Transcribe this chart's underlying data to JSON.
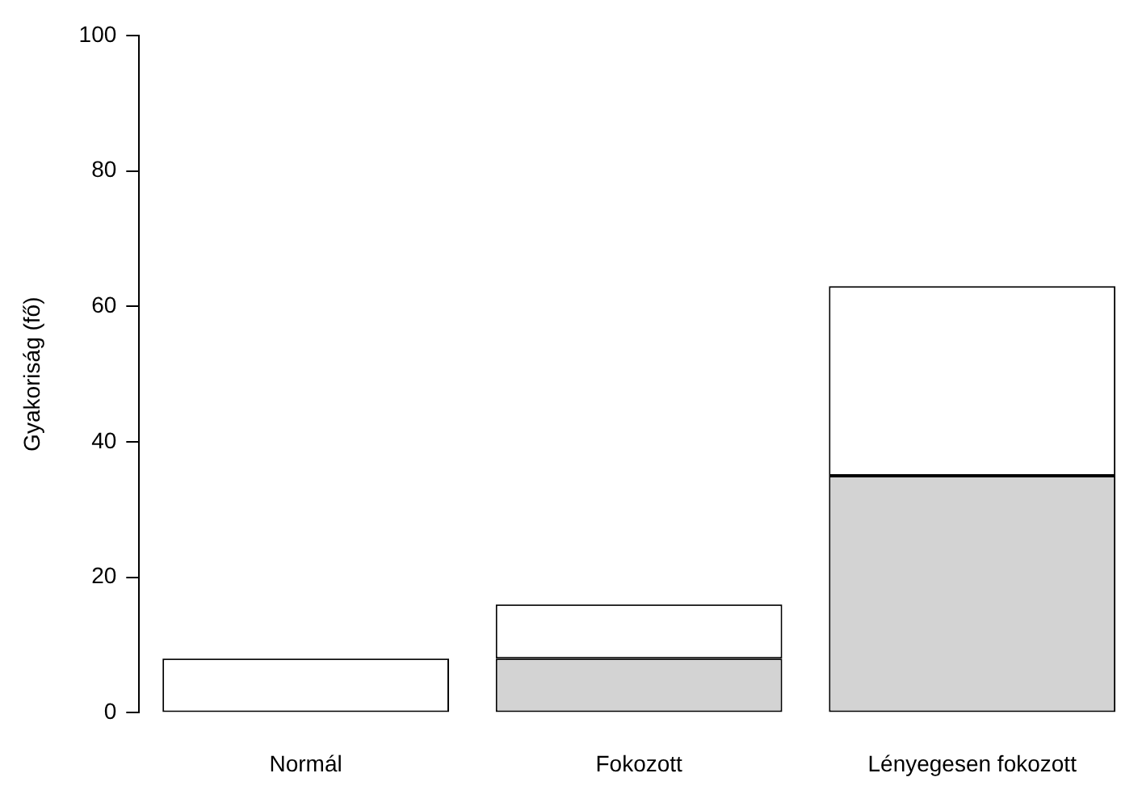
{
  "chart_data": {
    "type": "bar",
    "ylabel": "Gyakoriság (fő)",
    "categories": [
      "Normál",
      "Fokozott",
      "Lényegesen fokozott"
    ],
    "stacked": true,
    "series": [
      {
        "color": "#d3d3d3",
        "values": [
          0,
          8,
          35
        ]
      },
      {
        "color": "#ffffff",
        "values": [
          8,
          8,
          28
        ]
      }
    ],
    "ylim": [
      0,
      100
    ],
    "yticks": [
      0,
      20,
      40,
      60,
      80,
      100
    ]
  }
}
